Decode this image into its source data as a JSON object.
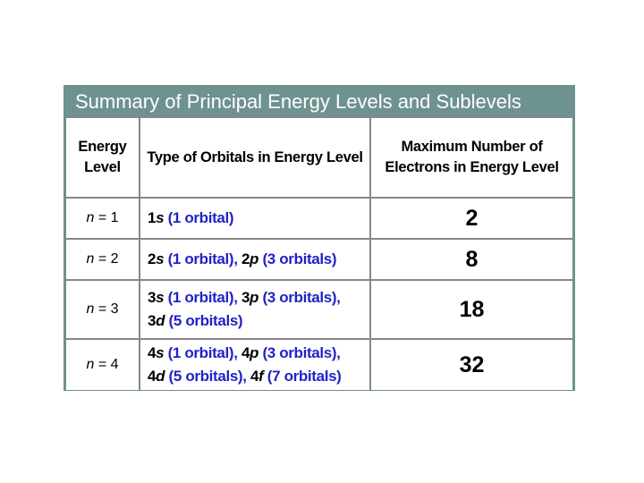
{
  "colors": {
    "teal": "#6e9290",
    "grid": "#878787",
    "ink": "#000000",
    "blue": "#2222c8",
    "title_text": "#ffffff",
    "cell_bg": "#ffffff",
    "page_bg": "#ffffff"
  },
  "panel": {
    "title": "Summary of Principal Energy Levels and Sublevels"
  },
  "table": {
    "headers": [
      "Energy Level",
      "Type of Orbitals in Energy Level",
      "Maximum Number of Electrons in Energy Level"
    ],
    "rows": [
      {
        "level": [
          {
            "t": "n",
            "i": true
          },
          {
            "t": " = 1"
          }
        ],
        "orbitals": [
          {
            "t": "1"
          },
          {
            "t": "s",
            "i": true
          },
          {
            "t": " (1 orbital)",
            "c": "blue"
          }
        ],
        "max": "2"
      },
      {
        "level": [
          {
            "t": "n",
            "i": true
          },
          {
            "t": " = 2"
          }
        ],
        "orbitals": [
          {
            "t": "2"
          },
          {
            "t": "s",
            "i": true
          },
          {
            "t": " (1 orbital), ",
            "c": "blue"
          },
          {
            "t": "2"
          },
          {
            "t": "p",
            "i": true
          },
          {
            "t": " (3 orbitals)",
            "c": "blue"
          }
        ],
        "max": "8"
      },
      {
        "level": [
          {
            "t": "n",
            "i": true
          },
          {
            "t": " = 3"
          }
        ],
        "orbitals": [
          {
            "t": "3"
          },
          {
            "t": "s",
            "i": true
          },
          {
            "t": " (1 orbital), ",
            "c": "blue"
          },
          {
            "t": "3"
          },
          {
            "t": "p",
            "i": true
          },
          {
            "t": " (3 orbitals),",
            "c": "blue"
          },
          {
            "br": true
          },
          {
            "t": "3"
          },
          {
            "t": "d",
            "i": true
          },
          {
            "t": " (5 orbitals)",
            "c": "blue"
          }
        ],
        "max": "18"
      },
      {
        "level": [
          {
            "t": "n",
            "i": true
          },
          {
            "t": " = 4"
          }
        ],
        "orbitals": [
          {
            "t": "4"
          },
          {
            "t": "s",
            "i": true
          },
          {
            "t": " (1 orbital), ",
            "c": "blue"
          },
          {
            "t": "4"
          },
          {
            "t": "p",
            "i": true
          },
          {
            "t": " (3 orbitals),",
            "c": "blue"
          },
          {
            "br": true
          },
          {
            "t": "4"
          },
          {
            "t": "d",
            "i": true
          },
          {
            "t": " (5 orbitals), ",
            "c": "blue"
          },
          {
            "t": "4"
          },
          {
            "t": "f",
            "i": true
          },
          {
            "t": " (7 orbitals)",
            "c": "blue"
          }
        ],
        "max": "32"
      }
    ]
  }
}
